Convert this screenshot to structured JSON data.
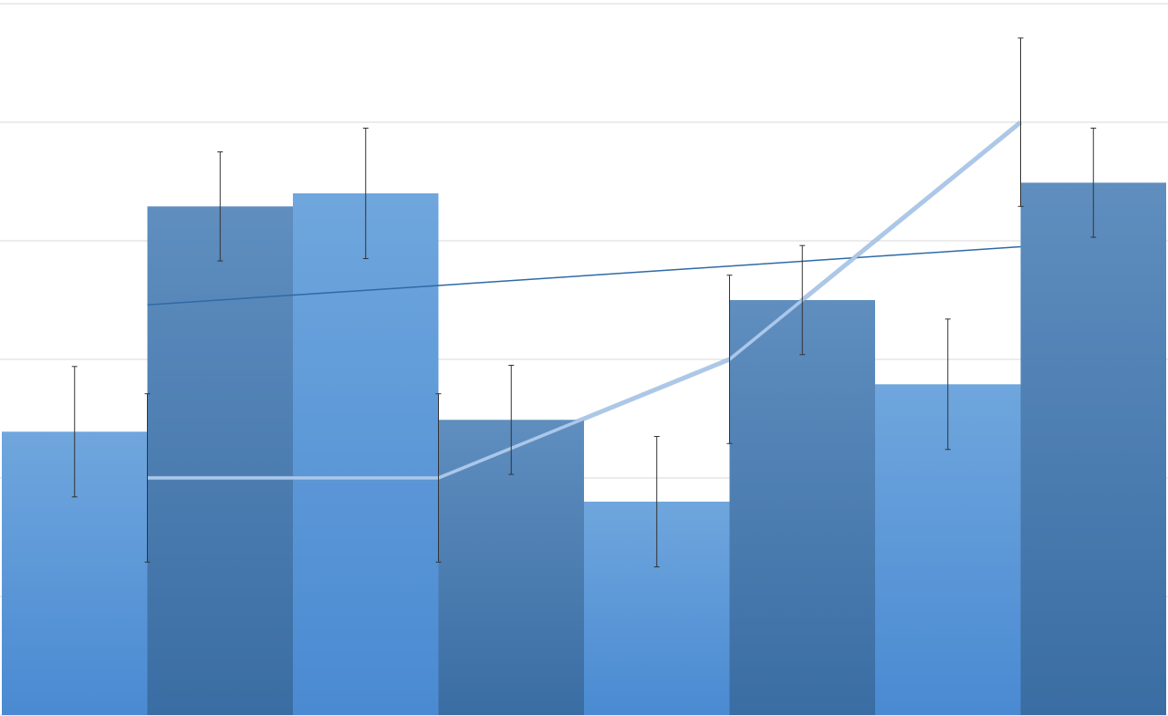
{
  "chart_data": {
    "type": "bar",
    "title": "",
    "xlabel": "",
    "ylabel": "",
    "ylim": [
      0,
      6
    ],
    "grid": true,
    "legend": "none",
    "categories": [
      "",
      "",
      "",
      "",
      "",
      "",
      "",
      ""
    ],
    "bars": {
      "values": [
        2.39,
        4.29,
        4.4,
        2.49,
        1.8,
        3.5,
        2.79,
        4.49
      ],
      "errors": [
        0.55,
        0.46,
        0.55,
        0.46,
        0.55,
        0.46,
        0.55,
        0.46
      ],
      "colors_light": [
        "#6fa6dd",
        "#4a8ad2"
      ],
      "colors_dark": [
        "#5f8ebf",
        "#3a6da3"
      ]
    },
    "line": {
      "x_positions": [
        1.5,
        3.5,
        5.5,
        7.5
      ],
      "values": [
        2,
        2,
        3,
        5
      ],
      "errors": [
        0.71,
        0.71,
        0.71,
        0.71
      ],
      "color": "#a9c8ec"
    },
    "trendline": {
      "x_range": [
        1.5,
        7.5
      ],
      "values": [
        3.46,
        3.95
      ],
      "color": "#2e6aa8"
    },
    "colors": {
      "gridline": "#d9d9d9",
      "errorbar": "#333333"
    }
  }
}
